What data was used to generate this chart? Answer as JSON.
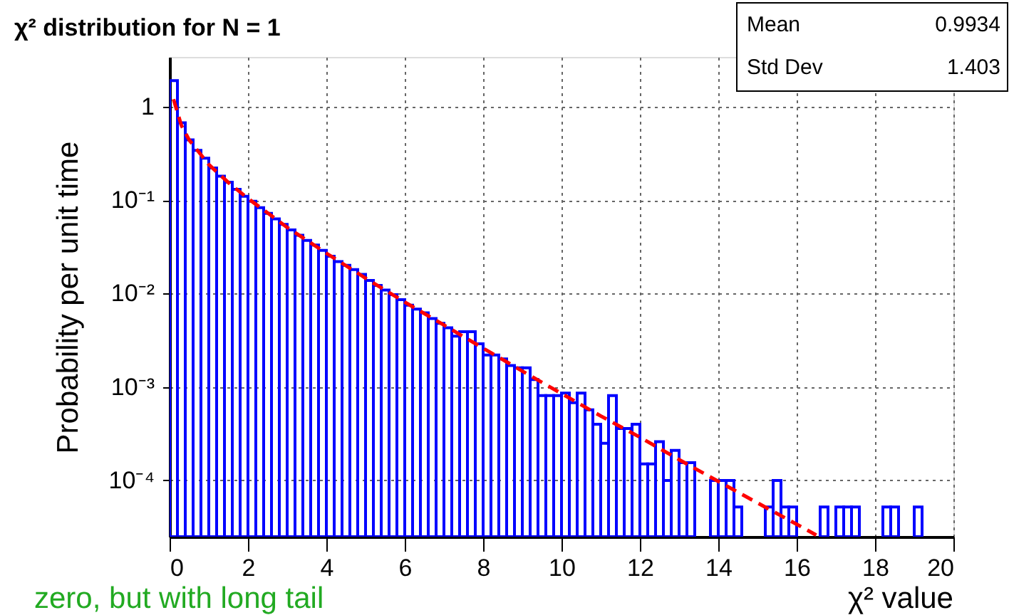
{
  "chart_data": {
    "type": "histogram",
    "title": "χ² distribution for N = 1",
    "xlabel": "χ² value",
    "ylabel": "Probability per unit time",
    "log": "y",
    "grid": true,
    "xlim": [
      0,
      20
    ],
    "xticks": [
      0,
      2,
      4,
      6,
      8,
      10,
      12,
      14,
      16,
      18,
      20
    ],
    "ylim": [
      2.5e-05,
      3.4
    ],
    "yticks": [
      {
        "value": 1,
        "label": "1"
      },
      {
        "value": 0.1,
        "label": "10⁻¹"
      },
      {
        "value": 0.01,
        "label": "10⁻²"
      },
      {
        "value": 0.001,
        "label": "10⁻³"
      },
      {
        "value": 0.0001,
        "label": "10⁻⁴"
      }
    ],
    "annotations": [
      "Mean",
      "0.9934",
      "Std Dev",
      "1.403",
      "zero, but with long tail"
    ],
    "series": [
      {
        "color": "#0000ff",
        "bins": [
          0,
          0.2,
          0.4,
          0.6,
          0.8,
          1,
          1.2,
          1.4,
          1.6,
          1.8,
          2,
          2.2,
          2.4,
          2.6,
          2.8,
          3,
          3.2,
          3.4,
          3.6,
          3.8,
          4,
          4.2,
          4.4,
          4.6,
          4.8,
          5,
          5.2,
          5.4,
          5.6,
          5.8,
          6,
          6.2,
          6.4,
          6.6,
          6.8,
          7,
          7.2,
          7.4,
          7.6,
          7.8,
          8,
          8.2,
          8.4,
          8.6,
          8.8,
          9,
          9.2,
          9.4,
          9.6,
          9.8,
          10,
          10.2,
          10.4,
          10.6,
          10.8,
          11,
          11.2,
          11.4,
          11.6,
          11.8,
          12,
          12.2,
          12.4,
          12.6,
          12.8,
          13,
          13.2,
          13.4,
          13.6,
          13.8,
          14,
          14.2,
          14.4,
          14.6,
          14.8,
          15,
          15.2,
          15.4,
          15.6,
          15.8,
          16,
          16.2,
          16.4,
          16.6,
          16.8,
          17,
          17.2,
          17.4,
          17.6,
          17.8,
          18,
          18.2,
          18.4,
          18.6,
          18.8,
          19,
          19.2,
          19.4,
          19.6,
          19.8,
          20
        ],
        "values": [
          1.9,
          0.67,
          0.44,
          0.34,
          0.28,
          0.22,
          0.18,
          0.155,
          0.13,
          0.11,
          0.097,
          0.083,
          0.072,
          0.063,
          0.055,
          0.048,
          0.042,
          0.037,
          0.033,
          0.029,
          0.025,
          0.022,
          0.02,
          0.018,
          0.016,
          0.0138,
          0.0122,
          0.0109,
          0.0097,
          0.0086,
          0.0075,
          0.0068,
          0.0062,
          0.0054,
          0.0048,
          0.0043,
          0.0035,
          0.0039,
          0.0039,
          0.0029,
          0.0022,
          0.0022,
          0.002,
          0.0017,
          0.0016,
          0.0016,
          0.0012,
          0.00081,
          0.00081,
          0.00081,
          0.00086,
          0.00068,
          0.00086,
          0.00057,
          0.0004,
          0.00025,
          0.00081,
          0.00036,
          0.00036,
          0.0004,
          0.00015,
          0.00015,
          0.00026,
          0.0001,
          0.00021,
          0.000155,
          0.000155,
          null,
          null,
          0.0001,
          0.0001,
          0.0001,
          5.2e-05,
          null,
          null,
          null,
          5.2e-05,
          0.0001,
          5.2e-05,
          5.2e-05,
          null,
          null,
          null,
          5.2e-05,
          null,
          5.2e-05,
          5.2e-05,
          5.2e-05,
          null,
          null,
          null,
          5.2e-05,
          5.2e-05,
          null,
          null,
          5.2e-05,
          null,
          null,
          null,
          null
        ]
      },
      {
        "type": "line",
        "color": "#ff0000",
        "line_style": "dashed",
        "x": [
          0.1,
          0.3,
          0.5,
          1,
          1.5,
          2,
          3,
          4,
          5,
          6,
          7,
          8,
          9,
          10,
          11,
          12,
          13,
          14,
          15,
          16,
          16.5
        ],
        "values": [
          1.2,
          0.63,
          0.44,
          0.24,
          0.154,
          0.104,
          0.051,
          0.027,
          0.0146,
          0.0081,
          0.0046,
          0.0026,
          0.00148,
          0.00085,
          0.00049,
          0.00029,
          0.000167,
          9.77e-05,
          5.75e-05,
          3.4e-05,
          2.6e-05
        ]
      }
    ]
  }
}
